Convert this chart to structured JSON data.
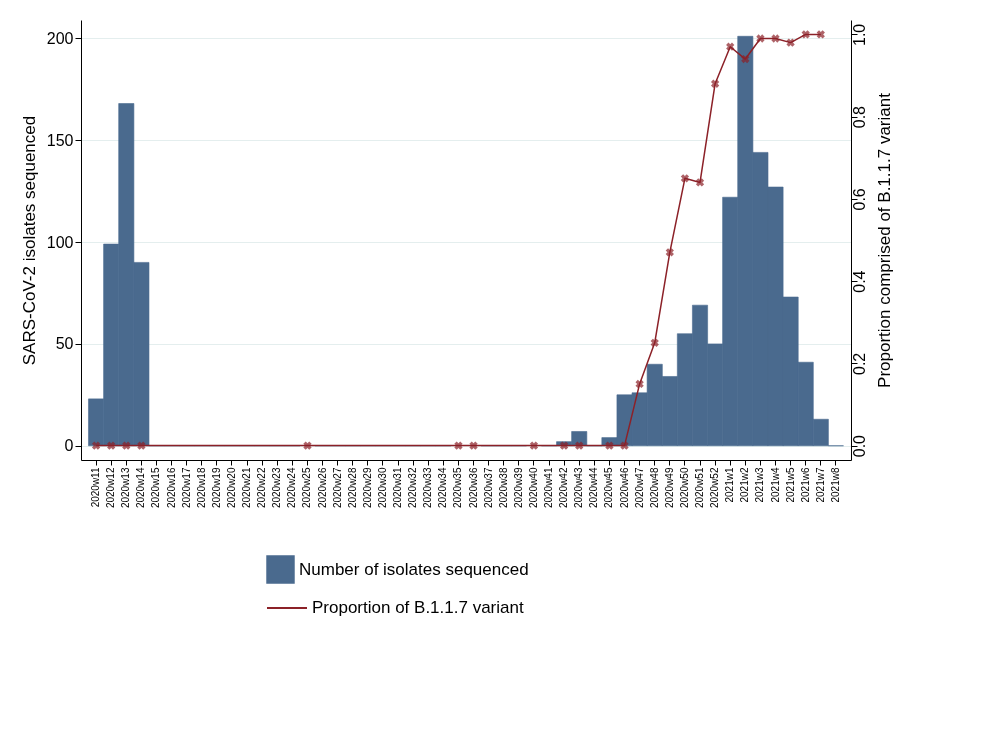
{
  "chart_data": {
    "type": "bar",
    "categories": [
      "2020w11",
      "2020w12",
      "2020w13",
      "2020w14",
      "2020w15",
      "2020w16",
      "2020w17",
      "2020w18",
      "2020w19",
      "2020w20",
      "2020w21",
      "2020w22",
      "2020w23",
      "2020w24",
      "2020w25",
      "2020w26",
      "2020w27",
      "2020w28",
      "2020w29",
      "2020w30",
      "2020w31",
      "2020w32",
      "2020w33",
      "2020w34",
      "2020w35",
      "2020w36",
      "2020w37",
      "2020w38",
      "2020w39",
      "2020w40",
      "2020w41",
      "2020w42",
      "2020w43",
      "2020w44",
      "2020w45",
      "2020w46",
      "2020w47",
      "2020w48",
      "2020w49",
      "2020w50",
      "2020w51",
      "2020w52",
      "2021w1",
      "2021w2",
      "2021w3",
      "2021w4",
      "2021w5",
      "2021w6",
      "2021w7",
      "2021w8"
    ],
    "series": [
      {
        "name": "Number of isolates sequenced",
        "color": "#4a6a8e",
        "values": [
          23,
          99,
          168,
          90,
          0,
          0,
          0,
          0,
          0,
          0,
          0,
          0,
          0,
          0,
          null,
          0,
          0,
          0,
          0,
          0,
          0,
          0,
          0,
          0,
          null,
          null,
          0,
          0,
          0,
          null,
          0,
          2,
          7,
          0,
          4,
          25,
          26,
          40,
          34,
          55,
          69,
          50,
          122,
          201,
          144,
          127,
          73,
          41,
          13,
          0
        ]
      },
      {
        "name": "Proportion of B.1.1.7 variant",
        "type": "line",
        "axis": "y2",
        "color": "#8c2128",
        "values": [
          0,
          0,
          0,
          0,
          null,
          null,
          null,
          null,
          null,
          null,
          null,
          null,
          null,
          null,
          0,
          null,
          null,
          null,
          null,
          null,
          null,
          null,
          null,
          null,
          0,
          0,
          null,
          null,
          null,
          0,
          null,
          0,
          0,
          null,
          0,
          0,
          0.15,
          0.25,
          0.47,
          0.65,
          0.64,
          0.88,
          0.97,
          0.94,
          0.99,
          0.99,
          0.98,
          1.0,
          1.0,
          null
        ]
      }
    ],
    "ylabel": "SARS-CoV-2 isolates sequenced",
    "y2label": "Proportion comprised of B.1.1.7 variant",
    "ylim": [
      -7,
      209
    ],
    "yticks": [
      0,
      50,
      100,
      150,
      200
    ],
    "y2lim": [
      -0.035,
      1.035
    ],
    "y2ticks": [
      {
        "value": 0,
        "label": "0.0"
      },
      0.2,
      0.4,
      0.6,
      0.8,
      {
        "value": 1,
        "label": "1.0"
      }
    ],
    "grid": "y",
    "marker": "cross",
    "legend": "bottom"
  }
}
